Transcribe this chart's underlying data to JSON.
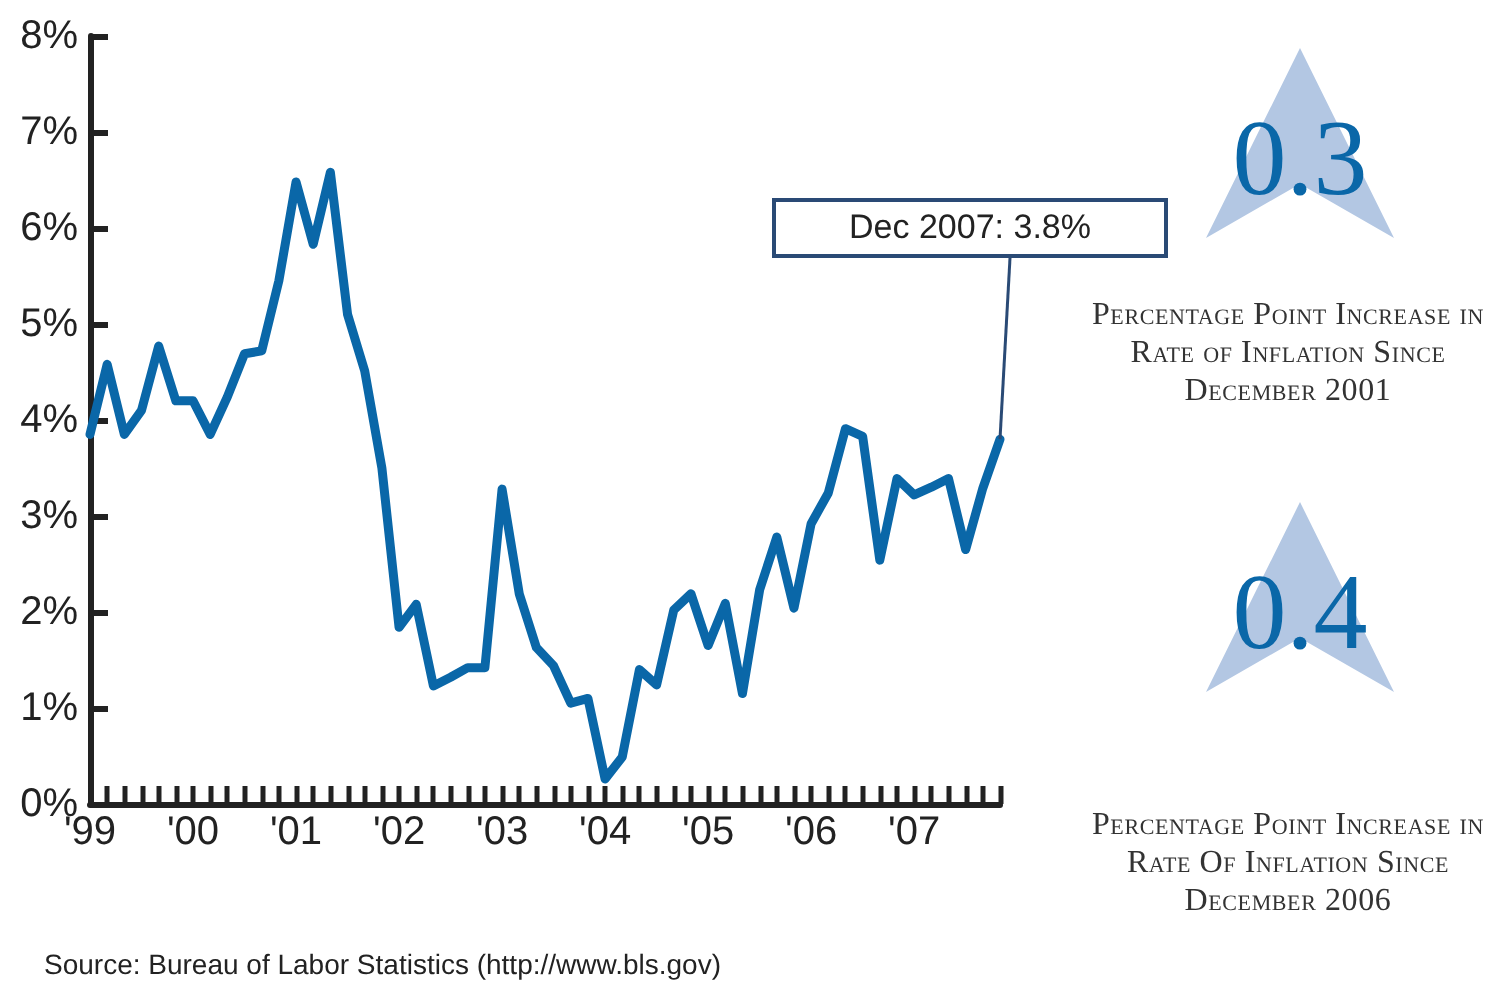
{
  "chart_data": {
    "type": "line",
    "categories": [
      "'99",
      null,
      null,
      null,
      null,
      null,
      "'00",
      null,
      null,
      null,
      null,
      null,
      "'01",
      null,
      null,
      null,
      null,
      null,
      "'02",
      null,
      null,
      null,
      null,
      null,
      "'03",
      null,
      null,
      null,
      null,
      null,
      "'04",
      null,
      null,
      null,
      null,
      null,
      "'05",
      null,
      null,
      null,
      null,
      null,
      "'06",
      null,
      null,
      null,
      null,
      null,
      "'07",
      null,
      null,
      null,
      null,
      null
    ],
    "series": [
      {
        "color": "#0a67a8",
        "values": [
          3.85,
          4.58,
          3.85,
          4.1,
          4.77,
          4.2,
          4.2,
          3.85,
          4.24,
          4.69,
          4.72,
          5.45,
          6.48,
          5.83,
          6.58,
          5.1,
          4.51,
          3.5,
          1.84,
          2.08,
          1.23,
          1.32,
          1.42,
          1.42,
          3.28,
          2.19,
          1.63,
          1.44,
          1.05,
          1.1,
          0.26,
          0.49,
          1.4,
          1.24,
          2.02,
          2.19,
          1.65,
          2.09,
          1.15,
          2.23,
          2.78,
          2.04,
          2.92,
          3.24,
          3.91,
          3.83,
          2.54,
          3.39,
          3.22,
          3.3,
          3.39,
          2.65,
          3.29,
          3.8
        ]
      }
    ],
    "ylim": [
      0,
      8
    ],
    "yticks": [
      {
        "value": 0,
        "label": "0%"
      },
      {
        "value": 1,
        "label": "1%"
      },
      {
        "value": 2,
        "label": "2%"
      },
      {
        "value": 3,
        "label": "3%"
      },
      {
        "value": 4,
        "label": "4%"
      },
      {
        "value": 5,
        "label": "5%"
      },
      {
        "value": 6,
        "label": "6%"
      },
      {
        "value": 7,
        "label": "7%"
      },
      {
        "value": 8,
        "label": "8%"
      }
    ],
    "marker": "none",
    "line_style": "solid",
    "annotations": [
      "Dec 2007: 3.8%",
      "0.3",
      "Percentage Point Increase in Rate of Inflation Since December 2001",
      "0.4",
      "Percentage Point Increase in Rate Of Inflation Since December 2006",
      "Source: Bureau of Labor Statistics (http://www.bls.gov)"
    ]
  }
}
